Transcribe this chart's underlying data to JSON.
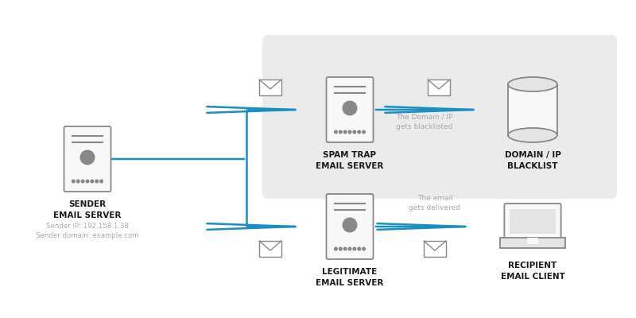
{
  "bg_color": "#ffffff",
  "box_bg": "#ebebeb",
  "arrow_color": "#1a8fc1",
  "icon_edge": "#888888",
  "icon_face": "#f8f8f8",
  "icon_face2": "#e5e5e5",
  "label_color": "#1a1a1a",
  "note_color": "#aaaaaa",
  "sender_label": [
    "SENDER",
    "EMAIL SERVER"
  ],
  "sender_sub1": "Sender IP: 192.158.1.38",
  "sender_sub2": "Sender domain: example.com",
  "spam_label": [
    "SPAM TRAP",
    "EMAIL SERVER"
  ],
  "blacklist_label": [
    "DOMAIN / IP",
    "BLACKLIST"
  ],
  "legit_label": [
    "LEGITIMATE",
    "EMAIL SERVER"
  ],
  "recipient_label": [
    "RECIPIENT",
    "EMAIL CLIENT"
  ],
  "blacklist_note1": "The Domain / IP",
  "blacklist_note2": "gets blacklisted",
  "delivered_note1": "The email",
  "delivered_note2": "gets delivered"
}
